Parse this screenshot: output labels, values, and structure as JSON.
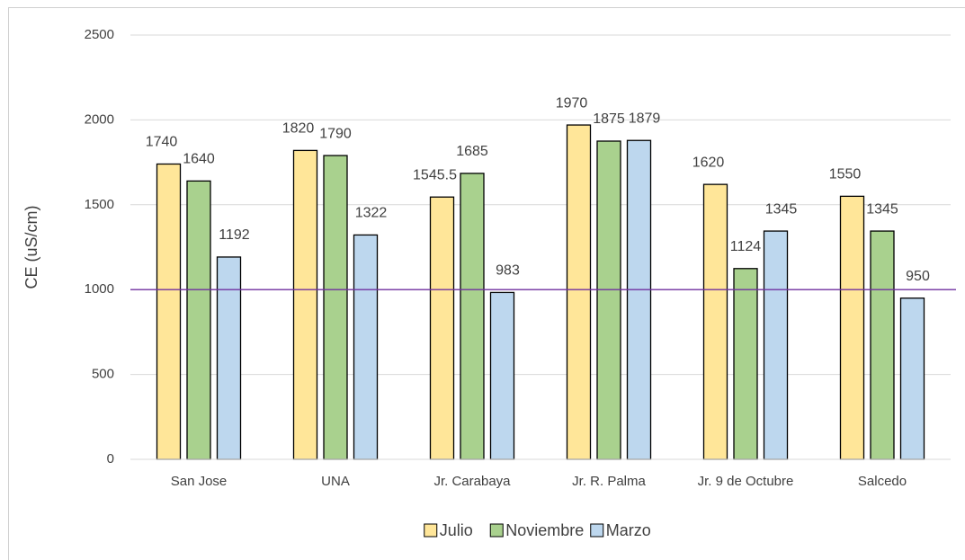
{
  "chart_data": {
    "type": "bar",
    "y_label": "CE (uS/cm)",
    "categories": [
      "San Jose",
      "UNA",
      "Jr. Carabaya",
      "Jr. R. Palma",
      "Jr. 9 de Octubre",
      "Salcedo"
    ],
    "series": [
      {
        "name": "Julio",
        "color": "#ffe699",
        "values": [
          1740,
          1820,
          1545.5,
          1970,
          1620,
          1550
        ]
      },
      {
        "name": "Noviembre",
        "color": "#a9d18e",
        "values": [
          1640,
          1790,
          1685,
          1875,
          1124,
          1345
        ]
      },
      {
        "name": "Marzo",
        "color": "#bdd7ee",
        "values": [
          1192,
          1322,
          983,
          1879,
          1345,
          950
        ]
      }
    ],
    "reference_line": {
      "value": 1000,
      "color": "#7030a0"
    },
    "ylim": [
      0,
      2500
    ],
    "yticks": [
      0,
      500,
      1000,
      1500,
      2000,
      2500
    ],
    "grid": true,
    "legend": "bottom"
  }
}
